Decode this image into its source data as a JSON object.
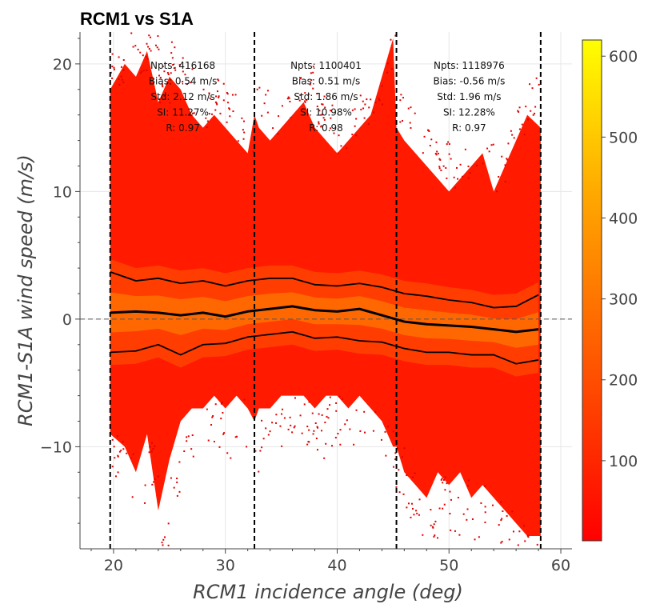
{
  "chart_data": {
    "type": "heatmap",
    "title": "RCM1 vs S1A",
    "xlabel": "RCM1 incidence angle (deg)",
    "ylabel": "RCM1-S1A wind speed (m/s)",
    "xlim": [
      17,
      61
    ],
    "ylim": [
      -18,
      22.5
    ],
    "x_ticks": [
      20,
      30,
      40,
      50,
      60
    ],
    "y_ticks": [
      -10,
      0,
      10,
      20
    ],
    "x_tick_labels": [
      "20",
      "30",
      "40",
      "50",
      "60"
    ],
    "y_tick_labels": [
      "−10",
      "0",
      "10",
      "20"
    ],
    "grid": true,
    "reference_line_y": 0,
    "beam_boundaries_deg": [
      19.7,
      32.6,
      45.3,
      58.2
    ],
    "colorbar": {
      "min": 1,
      "max": 620,
      "ticks": [
        100,
        200,
        300,
        400,
        500,
        600
      ],
      "tick_labels": [
        "100",
        "200",
        "300",
        "400",
        "500",
        "600"
      ],
      "colors": [
        "#ff0000",
        "#ff5500",
        "#ffaa00",
        "#ffff00"
      ]
    },
    "beam_stats": [
      {
        "x_center_deg": 26.2,
        "npts": "Npts: 416168",
        "bias": "Bias: 0.54 m/s",
        "std": "Std: 2.12 m/s",
        "si": "SI: 11.27%",
        "r": "R: 0.97"
      },
      {
        "x_center_deg": 39.0,
        "npts": "Npts: 1100401",
        "bias": "Bias: 0.51 m/s",
        "std": "Std: 1.86 m/s",
        "si": "SI: 10.98%",
        "r": "R: 0.98"
      },
      {
        "x_center_deg": 51.8,
        "npts": "Npts: 1118976",
        "bias": "Bias: -0.56 m/s",
        "std": "Std: 1.96 m/s",
        "si": "SI: 12.28%",
        "r": "R: 0.97"
      }
    ],
    "series": [
      {
        "role": "median",
        "x": [
          19.7,
          22,
          24,
          26,
          28,
          30,
          32,
          34,
          36,
          38,
          40,
          42,
          44,
          46,
          48,
          50,
          52,
          54,
          56,
          58
        ],
        "y": [
          0.5,
          0.6,
          0.5,
          0.3,
          0.5,
          0.2,
          0.6,
          0.8,
          1.0,
          0.7,
          0.6,
          0.8,
          0.3,
          -0.2,
          -0.4,
          -0.5,
          -0.6,
          -0.8,
          -1.0,
          -0.8
        ]
      },
      {
        "role": "upper",
        "x": [
          19.7,
          22,
          24,
          26,
          28,
          30,
          32,
          34,
          36,
          38,
          40,
          42,
          44,
          46,
          48,
          50,
          52,
          54,
          56,
          58
        ],
        "y": [
          3.7,
          3.0,
          3.2,
          2.8,
          3.0,
          2.6,
          3.0,
          3.2,
          3.2,
          2.7,
          2.6,
          2.8,
          2.5,
          2.0,
          1.8,
          1.5,
          1.3,
          0.9,
          1.0,
          1.9
        ]
      },
      {
        "role": "lower",
        "x": [
          19.7,
          22,
          24,
          26,
          28,
          30,
          32,
          34,
          36,
          38,
          40,
          42,
          44,
          46,
          48,
          50,
          52,
          54,
          56,
          58
        ],
        "y": [
          -2.6,
          -2.5,
          -2.0,
          -2.8,
          -2.0,
          -1.9,
          -1.4,
          -1.2,
          -1.0,
          -1.5,
          -1.4,
          -1.7,
          -1.8,
          -2.3,
          -2.6,
          -2.6,
          -2.8,
          -2.8,
          -3.5,
          -3.2
        ]
      }
    ],
    "density_envelope": {
      "x": [
        19.7,
        21,
        22,
        23,
        24,
        25,
        26,
        27,
        28,
        29,
        30,
        31,
        32,
        32.6,
        33,
        34,
        35,
        36,
        37,
        38,
        39,
        40,
        41,
        42,
        43,
        44,
        45,
        45.3,
        46,
        47,
        48,
        49,
        50,
        51,
        52,
        53,
        54,
        55,
        56,
        57,
        58.2
      ],
      "y_top": [
        18,
        20,
        19,
        21,
        17,
        19,
        18,
        16,
        15,
        16,
        15,
        14,
        13,
        16,
        15,
        14,
        15,
        16,
        17,
        15,
        14,
        13,
        14,
        15,
        16,
        19,
        22,
        15,
        14,
        13,
        12,
        11,
        10,
        11,
        12,
        13,
        10,
        12,
        14,
        16,
        15
      ],
      "y_bot": [
        -9,
        -10,
        -12,
        -9,
        -15,
        -11,
        -8,
        -7,
        -7,
        -6,
        -7,
        -6,
        -7,
        -8,
        -7,
        -7,
        -6,
        -6,
        -6,
        -7,
        -6,
        -6,
        -7,
        -6,
        -7,
        -8,
        -10,
        -10,
        -12,
        -13,
        -14,
        -12,
        -13,
        -12,
        -14,
        -13,
        -14,
        -15,
        -16,
        -17,
        -17
      ]
    }
  }
}
